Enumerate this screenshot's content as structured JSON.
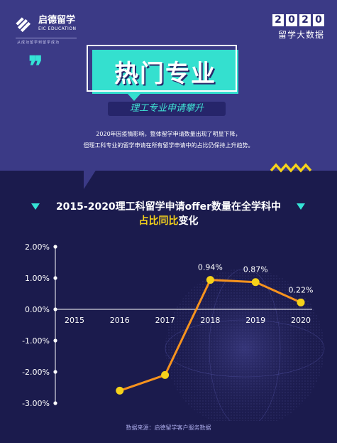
{
  "brand": {
    "name_cn": "启德留学",
    "name_en": "EIC EDUCATION",
    "slogan": "从成功留学到留学成功"
  },
  "badge": {
    "year_digits": [
      "2",
      "0",
      "2",
      "0"
    ],
    "subtitle": "留学大数据"
  },
  "header": {
    "title": "热门专业",
    "subtitle": "理工专业申请攀升"
  },
  "intro": {
    "line1": "2020年因疫情影响，整体留学申请数量出现了明显下降，",
    "line2": "但理工科专业的留学申请在所有留学申请中的占比仍保持上升趋势。"
  },
  "colors": {
    "accent_teal": "#34e0cf",
    "accent_yellow": "#f5d21a",
    "line_orange": "#f7931e",
    "band": "#3b3a86",
    "bg": "#1b1b4d"
  },
  "chart_data": {
    "type": "line",
    "title_line1": "2015-2020理工科留学申请offer数量在全学科中",
    "title_line2_highlight": "占比同比",
    "title_line2_rest": "变化",
    "categories": [
      "2015",
      "2016",
      "2017",
      "2018",
      "2019",
      "2020"
    ],
    "values": [
      null,
      -2.6,
      -2.1,
      0.94,
      0.87,
      0.22
    ],
    "data_labels": [
      "",
      "",
      "",
      "0.94%",
      "0.87%",
      "0.22%"
    ],
    "y_ticks": [
      "2.00%",
      "1.00%",
      "0.00%",
      "-1.00%",
      "-2.00%",
      "-3.00%"
    ],
    "y_tick_values": [
      2,
      1,
      0,
      -1,
      -2,
      -3
    ],
    "ylim": [
      -3,
      2
    ],
    "grid": false
  },
  "footer": {
    "source": "数据来源：启德留学客户服务数据"
  }
}
